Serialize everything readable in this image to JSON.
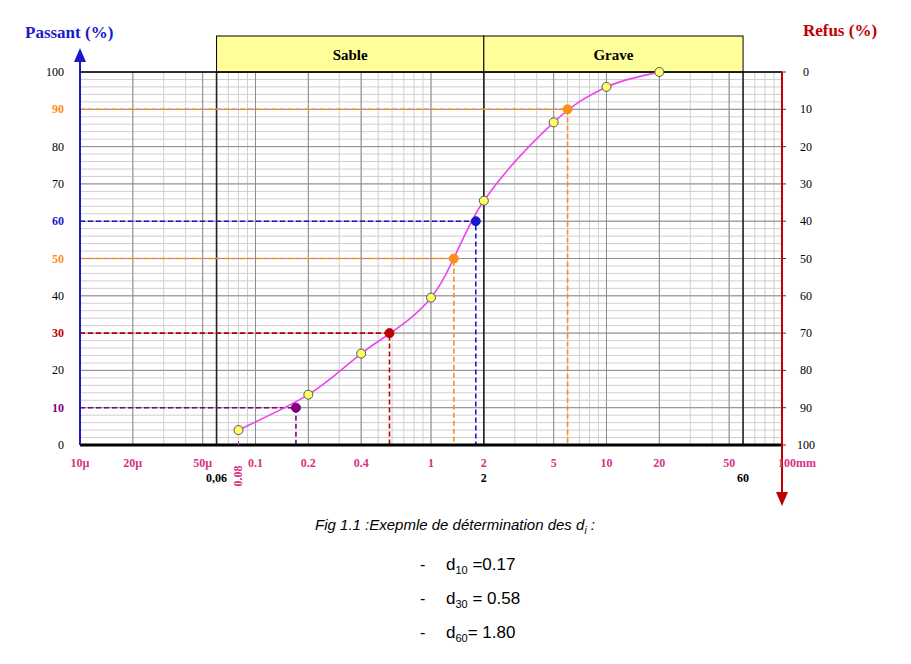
{
  "chart_data": {
    "type": "line",
    "y_label": "Passant (%)",
    "y2_label": "Refus (%)",
    "log": "x",
    "grid": true,
    "xlim": [
      0.01,
      100
    ],
    "xticks": [
      {
        "value": 0.01,
        "label": "10µ"
      },
      {
        "value": 0.02,
        "label": "20µ"
      },
      {
        "value": 0.05,
        "label": "50µ"
      },
      0.1,
      0.2,
      0.4,
      1,
      2,
      5,
      10,
      20,
      50,
      {
        "value": 100,
        "label": "100mm"
      }
    ],
    "ylim": [
      0,
      100
    ],
    "yticks": [
      0,
      10,
      20,
      30,
      40,
      50,
      60,
      70,
      80,
      90,
      100
    ],
    "y2lim": [
      100,
      0
    ],
    "y2ticks": [
      0,
      10,
      20,
      30,
      40,
      50,
      60,
      70,
      80,
      90,
      100
    ],
    "zones": [
      {
        "label": "Sable",
        "from": 0.06,
        "to": 2
      },
      {
        "label": "Grave",
        "from": 2,
        "to": 60
      }
    ],
    "class_limits": [
      {
        "value": 0.06,
        "label": "0,06"
      },
      {
        "value": 2,
        "label": "2"
      },
      {
        "value": 60,
        "label": "60"
      }
    ],
    "sieve_label": {
      "value": 0.08,
      "label": "0.08"
    },
    "series": [
      {
        "color": "#ee44ee",
        "marker": "circle",
        "line_style": "solid",
        "x": [
          0.08,
          0.2,
          0.4,
          1,
          2,
          5,
          10,
          20
        ],
        "values": [
          4,
          13.5,
          24.5,
          39.5,
          65.5,
          86.5,
          96,
          100
        ]
      }
    ],
    "key_points": [
      {
        "x": 0.17,
        "y": 10,
        "color": "#800080"
      },
      {
        "x": 0.58,
        "y": 30,
        "color": "#c00000"
      },
      {
        "x": 1.35,
        "y": 50,
        "color": "#ff8c1a"
      },
      {
        "x": 1.8,
        "y": 60,
        "color": "#1a1acc"
      },
      {
        "x": 6,
        "y": 90,
        "color": "#ff8c1a"
      }
    ]
  },
  "caption": {
    "title": {
      "text": "Fig 1.1 :Exepmle de détermination des d",
      "sub": "i",
      "after": " :"
    },
    "items": [
      {
        "bullet": "-",
        "symbol": "d",
        "sub": "10",
        "text": " =0.17"
      },
      {
        "bullet": "-",
        "symbol": "d",
        "sub": "30",
        "text": " = 0.58"
      },
      {
        "bullet": "-",
        "symbol": "d",
        "sub": "60",
        "text": "= 1.80"
      }
    ]
  }
}
